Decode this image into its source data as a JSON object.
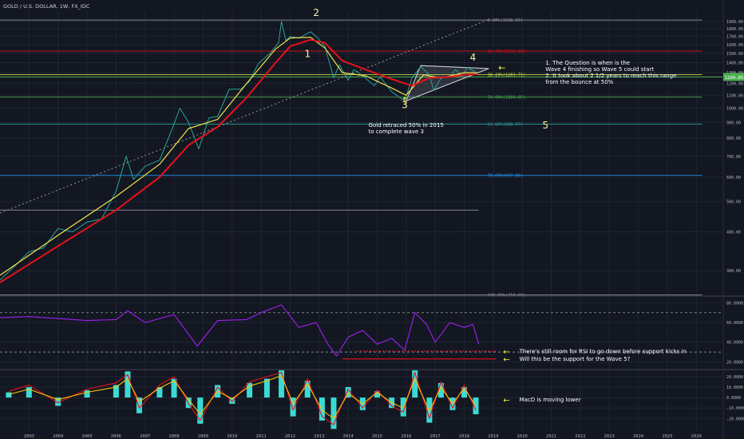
{
  "header": {
    "title": "GOLD / U.S. DOLLAR, 1W, FX_IDC"
  },
  "colors": {
    "background": "#131722",
    "grid": "#1f2533",
    "axis_text": "#b2b5be",
    "price": "#26a69a",
    "ema_fast": "#f4e24a",
    "ema_slow": "#e8111c",
    "rsi": "#a020f0",
    "macd_hist": "#3ff0e8",
    "macd_line": "#e8111c",
    "macd_signal": "#ffc107",
    "annotation": "#ffffff",
    "arrow": "#f6f63c"
  },
  "chart_data": [
    {
      "type": "line",
      "panel": "price",
      "title": "GOLD / U.S. DOLLAR, 1W, FX_IDC",
      "y_scale": "log",
      "ylim": [
        250,
        2050
      ],
      "xlim": [
        2002,
        2026.9
      ],
      "x_ticks": [
        "2003",
        "2004",
        "2005",
        "2006",
        "2007",
        "2008",
        "2009",
        "2010",
        "2011",
        "2012",
        "2013",
        "2014",
        "2015",
        "2016",
        "2017",
        "2018",
        "2019",
        "2020",
        "2021",
        "2022",
        "2023",
        "2024",
        "2025",
        "2026"
      ],
      "y_ticks": [
        "1900.00",
        "1800.00",
        "1700.00",
        "1600.00",
        "1500.00",
        "1400.00",
        "1300.00",
        "1200.00",
        "1100.00",
        "1000.00",
        "900.00",
        "800.00",
        "700.00",
        "600.00",
        "500.00",
        "400.00",
        "300.00"
      ],
      "last_price_label": "1294.85",
      "series": [
        {
          "key": "price",
          "x": [
            2002.0,
            2002.5,
            2003.0,
            2003.5,
            2004.0,
            2004.5,
            2005.0,
            2005.5,
            2006.0,
            2006.35,
            2006.6,
            2007.0,
            2007.5,
            2008.0,
            2008.2,
            2008.5,
            2008.85,
            2009.2,
            2009.5,
            2009.9,
            2010.3,
            2010.6,
            2010.9,
            2011.3,
            2011.6,
            2011.7,
            2011.85,
            2012.0,
            2012.3,
            2012.7,
            2012.9,
            2013.2,
            2013.5,
            2013.7,
            2014.0,
            2014.2,
            2014.5,
            2014.9,
            2015.1,
            2015.5,
            2015.9,
            2016.0,
            2016.2,
            2016.5,
            2016.8,
            2016.95,
            2017.2,
            2017.5,
            2017.7,
            2017.95,
            2018.1,
            2018.3,
            2018.45
          ],
          "y": [
            280,
            310,
            345,
            355,
            410,
            400,
            430,
            440,
            540,
            700,
            590,
            650,
            680,
            890,
            1000,
            900,
            740,
            930,
            940,
            1150,
            1150,
            1220,
            1390,
            1500,
            1620,
            1900,
            1650,
            1700,
            1680,
            1760,
            1700,
            1580,
            1250,
            1380,
            1230,
            1330,
            1270,
            1180,
            1260,
            1130,
            1060,
            1090,
            1250,
            1360,
            1280,
            1140,
            1250,
            1260,
            1330,
            1270,
            1350,
            1320,
            1290
          ]
        },
        {
          "key": "ema_fast",
          "x": [
            2002.0,
            2004.0,
            2006.0,
            2007.5,
            2008.5,
            2009.5,
            2010.5,
            2011.5,
            2012.0,
            2012.7,
            2013.2,
            2013.8,
            2014.6,
            2015.5,
            2016.0,
            2016.6,
            2017.2,
            2018.0,
            2018.45
          ],
          "y": [
            290,
            390,
            520,
            660,
            860,
            920,
            1200,
            1550,
            1680,
            1690,
            1560,
            1300,
            1270,
            1160,
            1100,
            1280,
            1250,
            1300,
            1300
          ]
        },
        {
          "key": "ema_slow",
          "x": [
            2002.0,
            2004.0,
            2006.0,
            2007.5,
            2008.5,
            2009.5,
            2010.5,
            2011.5,
            2012.0,
            2012.7,
            2013.2,
            2013.8,
            2014.6,
            2015.5,
            2016.2,
            2016.8,
            2017.5,
            2018.0,
            2018.45
          ],
          "y": [
            275,
            360,
            470,
            600,
            760,
            870,
            1080,
            1400,
            1580,
            1660,
            1620,
            1420,
            1330,
            1240,
            1180,
            1250,
            1260,
            1280,
            1285
          ]
        }
      ],
      "fib_levels": [
        {
          "label": "0.00%(1918.87)",
          "value": 1918.87,
          "color": "#9598a1"
        },
        {
          "label": "23.60%(1525.23)",
          "value": 1525.23,
          "color": "#e8111c"
        },
        {
          "label": "38.20%(1281.71)",
          "value": 1281.71,
          "color": "#c4e04a"
        },
        {
          "label": "50.00%(1084.85)",
          "value": 1084.85,
          "color": "#4caf50"
        },
        {
          "label": "61.80%(888.07)",
          "value": 888.07,
          "color": "#26a69a"
        },
        {
          "label": "78.60%(607.86)",
          "value": 607.86,
          "color": "#2196f3"
        },
        {
          "label": "",
          "value": 470,
          "color": "#9598a1"
        },
        {
          "label": "100.00%(250.82)",
          "value": 250.82,
          "color": "#9598a1"
        }
      ],
      "current_price_line": {
        "value": 1260,
        "color": "#4caf50"
      },
      "triangle": {
        "x": [
          2016.5,
          2016.0,
          2018.85
        ],
        "y": [
          1370,
          1055,
          1340
        ]
      },
      "diagonal": {
        "x": [
          2002.0,
          2018.8
        ],
        "y": [
          460,
          1920
        ]
      },
      "wave_labels": [
        {
          "text": "1",
          "x": 2012.6,
          "y": 1460,
          "color": "#f6f6a0"
        },
        {
          "text": "2",
          "x": 2012.9,
          "y": 1980,
          "color": "#f6f6a0"
        },
        {
          "text": "3",
          "x": 2015.95,
          "y": 1000,
          "color": "#f6f6a0"
        },
        {
          "text": "4",
          "x": 2018.3,
          "y": 1420,
          "color": "#f6f6a0"
        },
        {
          "text": "5",
          "x": 2020.8,
          "y": 860,
          "color": "#f6f6a0"
        }
      ],
      "annotations": [
        {
          "lines": [
            "1. The Question is when is the",
            "Wave 4 finishing so Wave 5 could start",
            "2. It took about 2 1/2 years to reach this range",
            "from the bounce at 50%"
          ],
          "x": 2020.8,
          "y": 1380
        },
        {
          "lines": [
            "Gold retraced 50% in 2015",
            "to complete wave 3"
          ],
          "x": 2014.7,
          "y": 870
        }
      ]
    },
    {
      "type": "line",
      "panel": "rsi",
      "ylim": [
        13,
        86
      ],
      "y_ticks": [
        "80.0000",
        "60.0000",
        "40.0000",
        "20.0000"
      ],
      "series": [
        {
          "key": "rsi",
          "x": [
            2002.0,
            2003.0,
            2004.0,
            2005.0,
            2006.0,
            2006.4,
            2007.0,
            2008.0,
            2008.8,
            2009.5,
            2010.5,
            2011.0,
            2011.7,
            2012.3,
            2012.9,
            2013.3,
            2013.6,
            2014.0,
            2014.5,
            2015.0,
            2015.5,
            2015.95,
            2016.3,
            2016.7,
            2017.0,
            2017.5,
            2018.0,
            2018.3,
            2018.5
          ],
          "y": [
            65,
            66,
            64,
            62,
            63,
            72,
            60,
            68,
            36,
            62,
            63,
            70,
            78,
            55,
            60,
            38,
            26,
            45,
            52,
            38,
            44,
            32,
            70,
            58,
            40,
            60,
            55,
            58,
            38
          ]
        }
      ],
      "reference_lines": [
        {
          "value": 70,
          "color": "#9598a1",
          "style": "dashed"
        },
        {
          "value": 30,
          "color": "#9598a1",
          "style": "dashed"
        }
      ],
      "support_lines": [
        {
          "x": [
            2014.3,
            2019.1
          ],
          "y": 31,
          "color": "#e8111c",
          "style": "dotted"
        },
        {
          "x": [
            2013.8,
            2019.1
          ],
          "y": 23,
          "color": "#e8111c",
          "style": "solid"
        }
      ],
      "annotations": [
        {
          "text": "There's still room for RSI to go down before support kicks in",
          "x": 2019.9,
          "y": 31
        },
        {
          "text": "Will this be the support for the Wave 5?",
          "x": 2019.9,
          "y": 23
        }
      ]
    },
    {
      "type": "bar",
      "panel": "macd",
      "ylim": [
        -32,
        26
      ],
      "y_ticks": [
        "20.0000",
        "10.0000",
        "0.0000",
        "-10.0000",
        "-20.0000"
      ],
      "series": [
        {
          "key": "macd_hist",
          "x": [
            2002.3,
            2003.0,
            2004.0,
            2005.0,
            2006.0,
            2006.4,
            2006.8,
            2007.5,
            2008.0,
            2008.5,
            2008.9,
            2009.5,
            2010.0,
            2010.6,
            2011.2,
            2011.7,
            2012.1,
            2012.6,
            2013.1,
            2013.5,
            2014.0,
            2014.5,
            2015.0,
            2015.5,
            2015.9,
            2016.3,
            2016.8,
            2017.2,
            2017.6,
            2018.0,
            2018.4
          ],
          "values": [
            5,
            10,
            -8,
            7,
            12,
            25,
            -15,
            10,
            18,
            -10,
            -25,
            12,
            -6,
            14,
            18,
            26,
            -18,
            16,
            -22,
            -30,
            10,
            -12,
            6,
            -10,
            -18,
            26,
            -24,
            14,
            -12,
            10,
            -16
          ]
        },
        {
          "key": "macd_line",
          "x": [
            2002.3,
            2003.0,
            2004.0,
            2005.0,
            2006.0,
            2006.4,
            2006.8,
            2007.5,
            2008.0,
            2008.5,
            2008.9,
            2009.5,
            2010.0,
            2010.6,
            2011.2,
            2011.7,
            2012.1,
            2012.6,
            2013.1,
            2013.5,
            2014.0,
            2014.5,
            2015.0,
            2015.5,
            2015.9,
            2016.3,
            2016.8,
            2017.2,
            2017.6,
            2018.0,
            2018.4
          ],
          "values": [
            6,
            12,
            -5,
            8,
            14,
            22,
            -10,
            12,
            20,
            -6,
            -22,
            10,
            -4,
            15,
            20,
            24,
            -12,
            18,
            -18,
            -26,
            8,
            -10,
            7,
            -8,
            -14,
            24,
            -20,
            15,
            -10,
            12,
            -12
          ]
        },
        {
          "key": "macd_signal",
          "x": [
            2002.3,
            2003.0,
            2004.0,
            2005.0,
            2006.0,
            2006.4,
            2006.8,
            2007.5,
            2008.0,
            2008.5,
            2008.9,
            2009.5,
            2010.0,
            2010.6,
            2011.2,
            2011.7,
            2012.1,
            2012.6,
            2013.1,
            2013.5,
            2014.0,
            2014.5,
            2015.0,
            2015.5,
            2015.9,
            2016.3,
            2016.8,
            2017.2,
            2017.6,
            2018.0,
            2018.4
          ],
          "values": [
            3,
            8,
            -2,
            5,
            10,
            18,
            -4,
            9,
            16,
            -2,
            -16,
            6,
            -1,
            11,
            16,
            21,
            -6,
            13,
            -12,
            -20,
            4,
            -6,
            5,
            -5,
            -10,
            18,
            -13,
            10,
            -6,
            9,
            -8
          ]
        }
      ],
      "annotations": [
        {
          "text": "MacD is moving lower",
          "x": 2019.9,
          "y": -2
        }
      ]
    }
  ]
}
